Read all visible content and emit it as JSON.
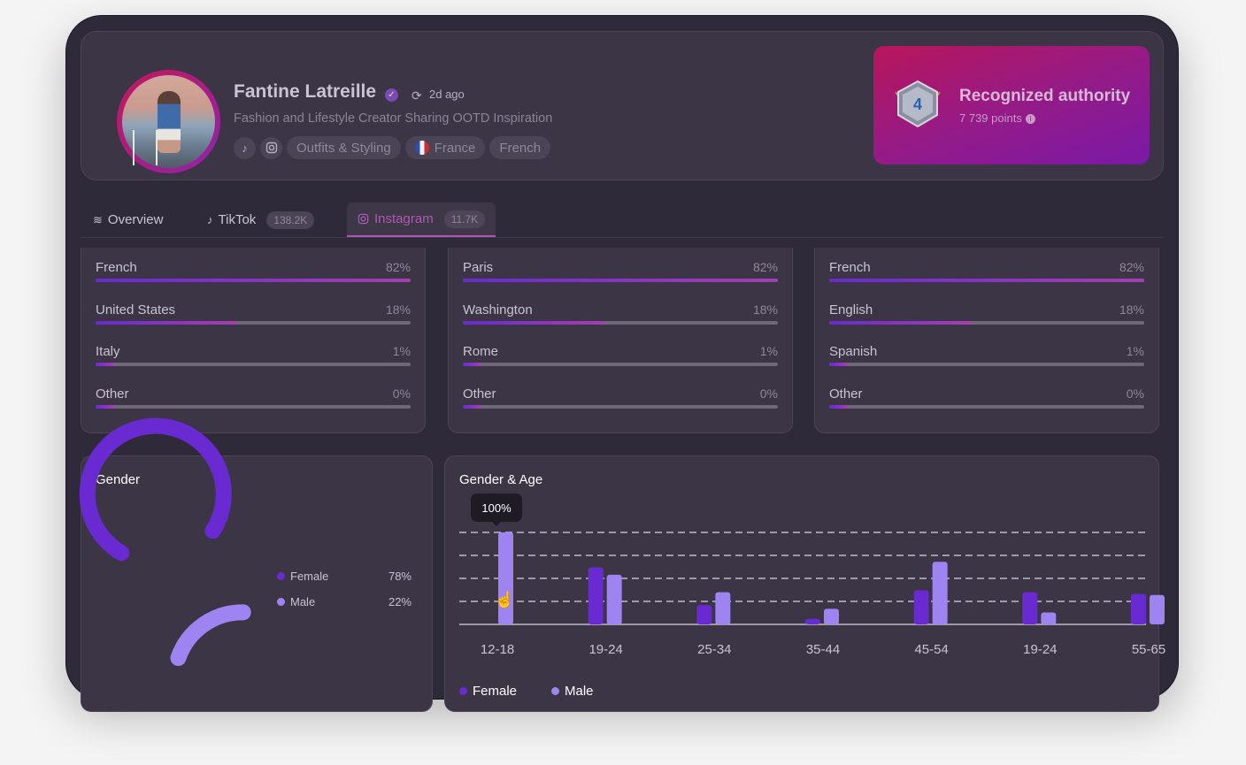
{
  "profile": {
    "name": "Fantine Latreille",
    "verified_icon": "verified-badge-icon",
    "updated": "2d ago",
    "bio": "Fashion and Lifestyle Creator Sharing OOTD Inspiration",
    "category": "Outfits & Styling",
    "country": "France",
    "language": "French"
  },
  "authority": {
    "level": "4",
    "title": "Recognized authority",
    "points": "7 739 points"
  },
  "tabs": [
    {
      "label": "Overview",
      "count": ""
    },
    {
      "label": "TikTok",
      "count": "138.2K"
    },
    {
      "label": "Instagram",
      "count": "11.7K"
    }
  ],
  "countries": [
    {
      "label": "French",
      "value": "82%",
      "fraction": 0.82
    },
    {
      "label": "United States",
      "value": "18%",
      "fraction": 0.18
    },
    {
      "label": "Italy",
      "value": "1%",
      "fraction": 0.01
    },
    {
      "label": "Other",
      "value": "0%",
      "fraction": 0.0
    }
  ],
  "cities": [
    {
      "label": "Paris",
      "value": "82%",
      "fraction": 0.82
    },
    {
      "label": "Washington",
      "value": "18%",
      "fraction": 0.18
    },
    {
      "label": "Rome",
      "value": "1%",
      "fraction": 0.01
    },
    {
      "label": "Other",
      "value": "0%",
      "fraction": 0.0
    }
  ],
  "languages": [
    {
      "label": "French",
      "value": "82%",
      "fraction": 0.82
    },
    {
      "label": "English",
      "value": "18%",
      "fraction": 0.18
    },
    {
      "label": "Spanish",
      "value": "1%",
      "fraction": 0.01
    },
    {
      "label": "Other",
      "value": "0%",
      "fraction": 0.0
    }
  ],
  "gender": {
    "title": "Gender",
    "legend": [
      {
        "label": "Female",
        "value": "78%"
      },
      {
        "label": "Male",
        "value": "22%"
      }
    ]
  },
  "gender_age": {
    "title": "Gender & Age",
    "tooltip": "100%",
    "legend_female": "Female",
    "legend_male": "Male"
  },
  "colors": {
    "female": "#6a2ad1",
    "male": "#9d84f0",
    "accent": "#b056b5"
  },
  "chart_data": [
    {
      "type": "pie",
      "title": "Gender",
      "categories": [
        "Female",
        "Male"
      ],
      "values": [
        78,
        22
      ]
    },
    {
      "type": "bar",
      "title": "Gender & Age",
      "categories": [
        "12-18",
        "19-24",
        "25-34",
        "35-44",
        "45-54",
        "19-24",
        "55-65"
      ],
      "series": [
        {
          "name": "Female",
          "values": [
            0,
            62,
            21,
            6,
            37,
            35,
            33
          ]
        },
        {
          "name": "Male",
          "values": [
            100,
            54,
            35,
            17,
            68,
            13,
            32
          ]
        }
      ],
      "ylim": [
        0,
        100
      ],
      "grid": true,
      "legend": "bottom-left"
    }
  ]
}
